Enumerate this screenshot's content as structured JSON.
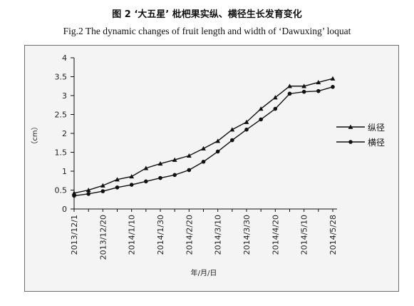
{
  "caption": {
    "chinese": "图 2 ‘大五星’ 枇杷果实纵、横径生长发育变化",
    "english": "Fig.2 The dynamic changes of fruit length and width of ‘Dawuxing’ loquat"
  },
  "chart_data": {
    "type": "line",
    "xlabel": "年/月/日",
    "ylabel": "（cm）",
    "ylim": [
      0,
      4
    ],
    "yticks": [
      "0",
      "0.5",
      "1",
      "1.5",
      "2",
      "2.5",
      "3",
      "3.5",
      "4"
    ],
    "xtick_labels": [
      "2013/12/1",
      "2013/12/20",
      "2014/1/10",
      "2014/1/30",
      "2014/2/20",
      "2014/3/10",
      "2014/3/30",
      "2014/4/20",
      "2014/5/10",
      "2014/5/28"
    ],
    "grid": false,
    "legend_position": "right",
    "series": [
      {
        "name": "纵径",
        "marker": "triangle",
        "values": [
          0.42,
          0.5,
          0.62,
          0.78,
          0.86,
          1.08,
          1.2,
          1.3,
          1.41,
          1.6,
          1.8,
          2.1,
          2.3,
          2.65,
          2.95,
          3.25,
          3.25,
          3.35,
          3.45
        ]
      },
      {
        "name": "横径",
        "marker": "circle",
        "values": [
          0.35,
          0.4,
          0.47,
          0.57,
          0.64,
          0.73,
          0.82,
          0.9,
          1.03,
          1.25,
          1.52,
          1.82,
          2.1,
          2.37,
          2.65,
          3.05,
          3.1,
          3.12,
          3.23
        ]
      }
    ],
    "colors": {
      "line": "#111111",
      "frame_bg": "#f4f4f4",
      "border": "#6e6e6e"
    }
  }
}
